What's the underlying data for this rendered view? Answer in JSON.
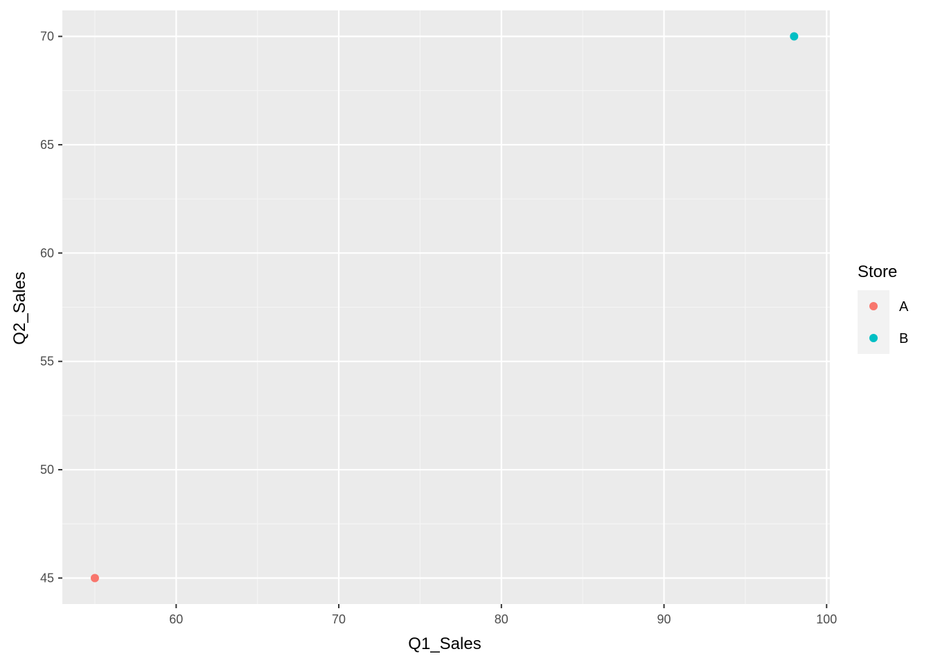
{
  "chart_data": {
    "type": "scatter",
    "xlabel": "Q1_Sales",
    "ylabel": "Q2_Sales",
    "xlim": [
      53,
      100.2
    ],
    "ylim": [
      43.8,
      71.2
    ],
    "x_ticks": [
      60,
      70,
      80,
      90,
      100
    ],
    "x_minor": [
      55,
      65,
      75,
      85,
      95
    ],
    "y_ticks": [
      45,
      50,
      55,
      60,
      65,
      70
    ],
    "y_minor": [
      47.5,
      52.5,
      57.5,
      62.5,
      67.5
    ],
    "grid": true,
    "legend": {
      "title": "Store",
      "placement": "right",
      "entries": [
        {
          "label": "A",
          "color": "#F8766D"
        },
        {
          "label": "B",
          "color": "#00BFC4"
        }
      ]
    },
    "series": [
      {
        "name": "A",
        "color": "#F8766D",
        "points": [
          {
            "x": 55,
            "y": 45
          }
        ]
      },
      {
        "name": "B",
        "color": "#00BFC4",
        "points": [
          {
            "x": 98,
            "y": 70
          }
        ]
      }
    ],
    "colors": {
      "panel_bg": "#EBEBEB",
      "grid_major": "#FFFFFF",
      "grid_minor": "#F5F5F5",
      "legend_key_bg": "#F2F2F2"
    }
  }
}
